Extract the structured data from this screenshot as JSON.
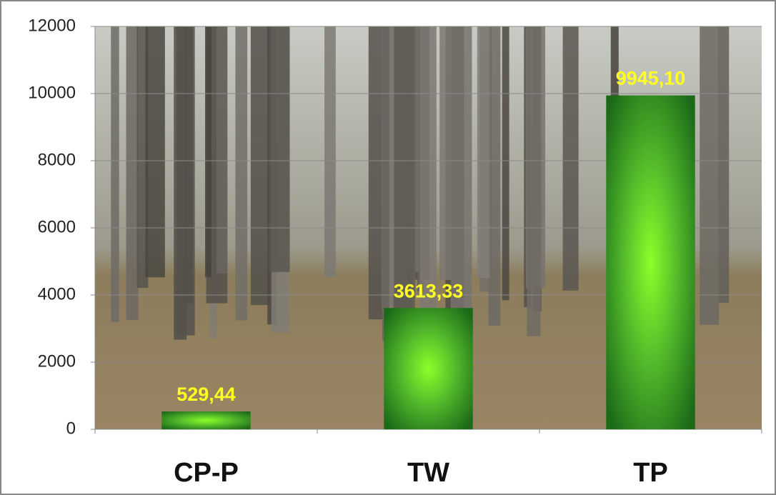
{
  "chart_data": {
    "type": "bar",
    "categories": [
      "CP-P",
      "TW",
      "TP"
    ],
    "values": [
      529.44,
      3613.33,
      9945.1
    ],
    "value_labels": [
      "529,44",
      "3613,33",
      "9945,10"
    ],
    "color": "#3a9a22",
    "ylim": [
      0,
      12000
    ],
    "yticks": [
      0,
      2000,
      4000,
      6000,
      8000,
      10000,
      12000
    ],
    "grid": true
  }
}
